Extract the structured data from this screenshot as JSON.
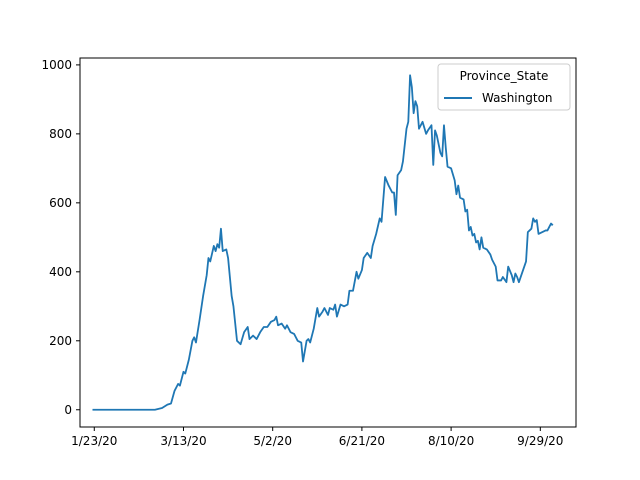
{
  "chart_data": {
    "type": "line",
    "x_type": "date",
    "xlim": [
      "2020-01-15",
      "2020-10-19"
    ],
    "ylim": [
      -50,
      1020
    ],
    "grid": false,
    "legend": {
      "title": "Province_State",
      "placement": "top-right"
    },
    "xticks": [
      {
        "value": "2020-01-23",
        "label": "1/23/20"
      },
      {
        "value": "2020-03-13",
        "label": "3/13/20"
      },
      {
        "value": "2020-05-02",
        "label": "5/2/20"
      },
      {
        "value": "2020-06-21",
        "label": "6/21/20"
      },
      {
        "value": "2020-08-10",
        "label": "8/10/20"
      },
      {
        "value": "2020-09-29",
        "label": "9/29/20"
      }
    ],
    "yticks": [
      {
        "value": 0,
        "label": "0"
      },
      {
        "value": 200,
        "label": "200"
      },
      {
        "value": 400,
        "label": "400"
      },
      {
        "value": 600,
        "label": "600"
      },
      {
        "value": 800,
        "label": "800"
      },
      {
        "value": 1000,
        "label": "1000"
      }
    ],
    "series": [
      {
        "name": "Washington",
        "color": "#1f77b4",
        "points": [
          [
            "2020-01-22",
            0
          ],
          [
            "2020-02-08",
            0
          ],
          [
            "2020-02-26",
            0
          ],
          [
            "2020-03-01",
            5
          ],
          [
            "2020-03-04",
            15
          ],
          [
            "2020-03-06",
            18
          ],
          [
            "2020-03-08",
            55
          ],
          [
            "2020-03-10",
            75
          ],
          [
            "2020-03-11",
            70
          ],
          [
            "2020-03-13",
            110
          ],
          [
            "2020-03-14",
            105
          ],
          [
            "2020-03-16",
            145
          ],
          [
            "2020-03-18",
            200
          ],
          [
            "2020-03-19",
            210
          ],
          [
            "2020-03-20",
            195
          ],
          [
            "2020-03-22",
            260
          ],
          [
            "2020-03-24",
            330
          ],
          [
            "2020-03-26",
            390
          ],
          [
            "2020-03-27",
            440
          ],
          [
            "2020-03-28",
            430
          ],
          [
            "2020-03-30",
            475
          ],
          [
            "2020-03-31",
            460
          ],
          [
            "2020-04-01",
            480
          ],
          [
            "2020-04-02",
            470
          ],
          [
            "2020-04-03",
            525
          ],
          [
            "2020-04-04",
            460
          ],
          [
            "2020-04-06",
            465
          ],
          [
            "2020-04-07",
            440
          ],
          [
            "2020-04-09",
            330
          ],
          [
            "2020-04-10",
            300
          ],
          [
            "2020-04-12",
            200
          ],
          [
            "2020-04-14",
            190
          ],
          [
            "2020-04-16",
            225
          ],
          [
            "2020-04-18",
            240
          ],
          [
            "2020-04-19",
            205
          ],
          [
            "2020-04-21",
            215
          ],
          [
            "2020-04-23",
            205
          ],
          [
            "2020-04-25",
            225
          ],
          [
            "2020-04-27",
            240
          ],
          [
            "2020-04-29",
            240
          ],
          [
            "2020-05-01",
            255
          ],
          [
            "2020-05-03",
            260
          ],
          [
            "2020-05-04",
            270
          ],
          [
            "2020-05-05",
            245
          ],
          [
            "2020-05-07",
            250
          ],
          [
            "2020-05-09",
            235
          ],
          [
            "2020-05-10",
            245
          ],
          [
            "2020-05-12",
            225
          ],
          [
            "2020-05-14",
            220
          ],
          [
            "2020-05-16",
            200
          ],
          [
            "2020-05-18",
            195
          ],
          [
            "2020-05-19",
            140
          ],
          [
            "2020-05-21",
            200
          ],
          [
            "2020-05-22",
            205
          ],
          [
            "2020-05-23",
            195
          ],
          [
            "2020-05-25",
            235
          ],
          [
            "2020-05-27",
            295
          ],
          [
            "2020-05-28",
            270
          ],
          [
            "2020-05-30",
            285
          ],
          [
            "2020-05-31",
            295
          ],
          [
            "2020-06-02",
            275
          ],
          [
            "2020-06-03",
            295
          ],
          [
            "2020-06-05",
            290
          ],
          [
            "2020-06-06",
            305
          ],
          [
            "2020-06-07",
            270
          ],
          [
            "2020-06-09",
            305
          ],
          [
            "2020-06-11",
            300
          ],
          [
            "2020-06-13",
            305
          ],
          [
            "2020-06-14",
            345
          ],
          [
            "2020-06-16",
            345
          ],
          [
            "2020-06-18",
            400
          ],
          [
            "2020-06-19",
            380
          ],
          [
            "2020-06-21",
            405
          ],
          [
            "2020-06-22",
            440
          ],
          [
            "2020-06-24",
            455
          ],
          [
            "2020-06-26",
            440
          ],
          [
            "2020-06-27",
            475
          ],
          [
            "2020-06-29",
            510
          ],
          [
            "2020-07-01",
            555
          ],
          [
            "2020-07-02",
            545
          ],
          [
            "2020-07-04",
            675
          ],
          [
            "2020-07-06",
            650
          ],
          [
            "2020-07-08",
            630
          ],
          [
            "2020-07-09",
            630
          ],
          [
            "2020-07-10",
            565
          ],
          [
            "2020-07-11",
            680
          ],
          [
            "2020-07-13",
            695
          ],
          [
            "2020-07-14",
            720
          ],
          [
            "2020-07-16",
            815
          ],
          [
            "2020-07-17",
            835
          ],
          [
            "2020-07-18",
            970
          ],
          [
            "2020-07-19",
            935
          ],
          [
            "2020-07-20",
            860
          ],
          [
            "2020-07-21",
            895
          ],
          [
            "2020-07-22",
            880
          ],
          [
            "2020-07-23",
            815
          ],
          [
            "2020-07-25",
            835
          ],
          [
            "2020-07-27",
            800
          ],
          [
            "2020-07-28",
            810
          ],
          [
            "2020-07-30",
            825
          ],
          [
            "2020-07-31",
            710
          ],
          [
            "2020-08-01",
            810
          ],
          [
            "2020-08-02",
            795
          ],
          [
            "2020-08-04",
            745
          ],
          [
            "2020-08-05",
            735
          ],
          [
            "2020-08-06",
            825
          ],
          [
            "2020-08-07",
            760
          ],
          [
            "2020-08-08",
            705
          ],
          [
            "2020-08-10",
            700
          ],
          [
            "2020-08-12",
            665
          ],
          [
            "2020-08-13",
            625
          ],
          [
            "2020-08-14",
            650
          ],
          [
            "2020-08-15",
            615
          ],
          [
            "2020-08-17",
            610
          ],
          [
            "2020-08-18",
            575
          ],
          [
            "2020-08-19",
            580
          ],
          [
            "2020-08-20",
            520
          ],
          [
            "2020-08-21",
            530
          ],
          [
            "2020-08-22",
            505
          ],
          [
            "2020-08-23",
            510
          ],
          [
            "2020-08-24",
            485
          ],
          [
            "2020-08-25",
            490
          ],
          [
            "2020-08-26",
            465
          ],
          [
            "2020-08-27",
            500
          ],
          [
            "2020-08-28",
            470
          ],
          [
            "2020-08-30",
            465
          ],
          [
            "2020-09-01",
            450
          ],
          [
            "2020-09-02",
            435
          ],
          [
            "2020-09-04",
            415
          ],
          [
            "2020-09-05",
            375
          ],
          [
            "2020-09-07",
            375
          ],
          [
            "2020-09-08",
            385
          ],
          [
            "2020-09-10",
            370
          ],
          [
            "2020-09-11",
            415
          ],
          [
            "2020-09-13",
            390
          ],
          [
            "2020-09-14",
            370
          ],
          [
            "2020-09-15",
            395
          ],
          [
            "2020-09-16",
            385
          ],
          [
            "2020-09-17",
            370
          ],
          [
            "2020-09-19",
            400
          ],
          [
            "2020-09-21",
            430
          ],
          [
            "2020-09-22",
            515
          ],
          [
            "2020-09-24",
            525
          ],
          [
            "2020-09-25",
            555
          ],
          [
            "2020-09-26",
            545
          ],
          [
            "2020-09-27",
            550
          ],
          [
            "2020-09-28",
            510
          ],
          [
            "2020-09-30",
            515
          ],
          [
            "2020-10-02",
            520
          ],
          [
            "2020-10-03",
            520
          ],
          [
            "2020-10-05",
            540
          ],
          [
            "2020-10-06",
            535
          ]
        ]
      }
    ]
  }
}
